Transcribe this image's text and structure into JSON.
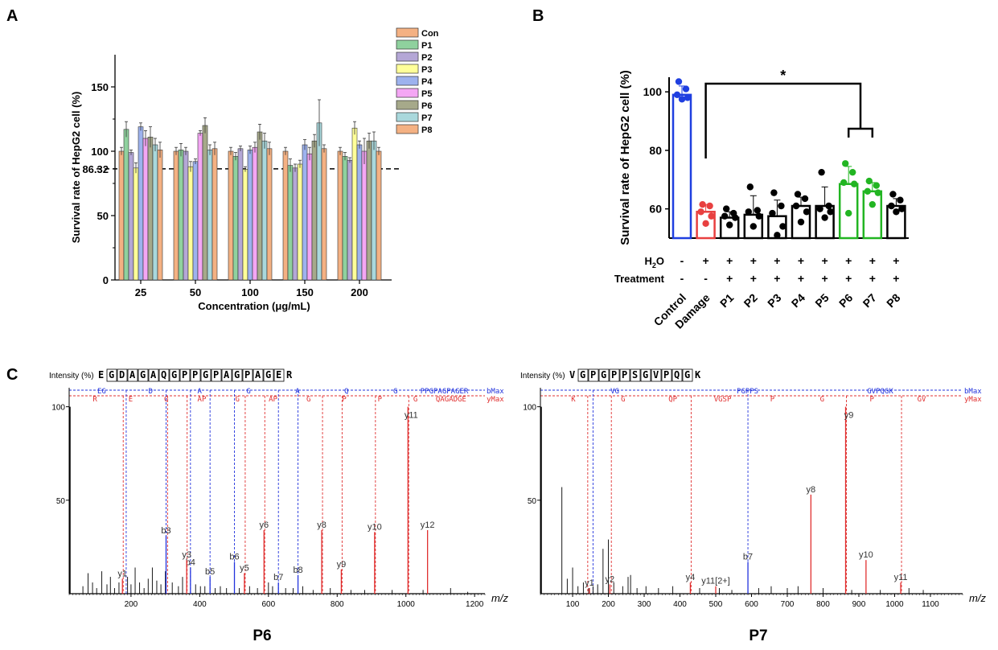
{
  "panels": {
    "a": "A",
    "b": "B",
    "c": "C"
  },
  "chart_data": [
    {
      "type": "bar",
      "id": "panel-a",
      "title": "",
      "xlabel": "Concentration (μg/mL)",
      "ylabel": "Survival rate of HepG2 cell (%)",
      "ylim": [
        0,
        175
      ],
      "yticks": [
        "0",
        "50",
        "100",
        "150"
      ],
      "ytick_values": [
        0,
        50,
        100,
        150
      ],
      "reference_line": {
        "value": 86.32,
        "label": "86.32"
      },
      "categories": [
        "25",
        "50",
        "100",
        "150",
        "200"
      ],
      "legend": [
        "Con",
        "P1",
        "P2",
        "P3",
        "P4",
        "P5",
        "P6",
        "P7",
        "P8"
      ],
      "colors": [
        "#F4B183",
        "#8FD19E",
        "#B4A7D6",
        "#FFFF99",
        "#9DB2EE",
        "#F4A6F4",
        "#A6A98A",
        "#A9D8DC",
        "#F4B183"
      ],
      "series": [
        {
          "name": "Con",
          "values": [
            100,
            100,
            100,
            100,
            100
          ],
          "errors": [
            3,
            3,
            3,
            3,
            3
          ]
        },
        {
          "name": "P1",
          "values": [
            117,
            101,
            96,
            89,
            96
          ],
          "errors": [
            6,
            5,
            3,
            5,
            3
          ]
        },
        {
          "name": "P2",
          "values": [
            99,
            100,
            102,
            87,
            93
          ],
          "errors": [
            2,
            3,
            2,
            3,
            2
          ]
        },
        {
          "name": "P3",
          "values": [
            87,
            88,
            86,
            90,
            118
          ],
          "errors": [
            4,
            4,
            2,
            3,
            5
          ]
        },
        {
          "name": "P4",
          "values": [
            119,
            92,
            101,
            105,
            105
          ],
          "errors": [
            3,
            2,
            3,
            4,
            3
          ]
        },
        {
          "name": "P5",
          "values": [
            110,
            114,
            103,
            98,
            100
          ],
          "errors": [
            6,
            2,
            4,
            5,
            10
          ]
        },
        {
          "name": "P6",
          "values": [
            111,
            120,
            115,
            108,
            108
          ],
          "errors": [
            8,
            6,
            6,
            5,
            6
          ]
        },
        {
          "name": "P7",
          "values": [
            105,
            101,
            108,
            122,
            108
          ],
          "errors": [
            5,
            4,
            6,
            18,
            7
          ]
        },
        {
          "name": "P8",
          "values": [
            101,
            102,
            102,
            102,
            100
          ],
          "errors": [
            6,
            5,
            5,
            3,
            3
          ]
        }
      ]
    },
    {
      "type": "bar",
      "id": "panel-b",
      "ylabel": "Survival rate of HepG2 cell (%)",
      "ylim": [
        50,
        105
      ],
      "yticks": [
        "60",
        "80",
        "100"
      ],
      "ytick_values": [
        60,
        80,
        100
      ],
      "categories": [
        "Control",
        "Damage",
        "P1",
        "P2",
        "P3",
        "P4",
        "P5",
        "P6",
        "P7",
        "P8"
      ],
      "values": [
        99,
        59,
        57,
        58,
        57.5,
        61,
        61,
        68.5,
        66,
        61
      ],
      "errors": [
        3,
        2.5,
        2,
        6.5,
        5.5,
        3,
        6.5,
        6,
        3,
        2.5
      ],
      "colors": [
        "#1F3FE0",
        "#E84040",
        "#000000",
        "#000000",
        "#000000",
        "#000000",
        "#000000",
        "#22B522",
        "#22B522",
        "#000000"
      ],
      "points": [
        [
          103.5,
          101,
          99,
          98,
          97.5
        ],
        [
          61.5,
          61,
          59,
          57.5,
          55
        ],
        [
          60,
          58.5,
          57.5,
          57,
          54.5
        ],
        [
          67.5,
          59.5,
          59,
          57.5,
          54
        ],
        [
          65.5,
          61,
          58.5,
          54,
          51
        ],
        [
          65,
          63.5,
          61,
          59,
          55.5
        ],
        [
          72.5,
          61,
          60,
          59,
          57
        ],
        [
          75.5,
          72.5,
          69,
          68.5,
          58.5
        ],
        [
          69.5,
          68,
          66,
          65.5,
          61.5
        ],
        [
          65,
          63,
          61,
          60,
          59
        ]
      ],
      "row_h2o": {
        "label_main": "H",
        "label_sub": "2",
        "label_end": "O",
        "signs": [
          "-",
          "+",
          "+",
          "+",
          "+",
          "+",
          "+",
          "+",
          "+",
          "+"
        ]
      },
      "row_treatment": {
        "label": "Treatment",
        "signs": [
          "-",
          "-",
          "+",
          "+",
          "+",
          "+",
          "+",
          "+",
          "+",
          "+"
        ]
      },
      "significance": "*"
    },
    {
      "type": "spectrum",
      "id": "panel-c-p6",
      "title": "P6",
      "ylabel": "Intensity (%)",
      "peptide": "EGDAGAQGPPGPAGPAGER",
      "xlabel": "m/z",
      "xlim": [
        20,
        1230
      ],
      "xticks": [
        200,
        400,
        600,
        800,
        1000,
        1200
      ],
      "yticks": [
        50,
        100
      ],
      "ylim": [
        0,
        105
      ],
      "b_ion_row": {
        "fragments": [
          "EG",
          "D",
          "A",
          "G",
          "A",
          "Q",
          "G",
          "PPGPAGPAGER"
        ],
        "end_label": "bMax"
      },
      "y_ion_row": {
        "fragments": [
          "R",
          "E",
          "G",
          "AP",
          "G",
          "AP",
          "G",
          "P",
          "P",
          "G",
          "QAGADGE"
        ],
        "end_label": "yMax"
      },
      "b_ions": [
        {
          "label": "b3",
          "mz": 302,
          "intensity": 31
        },
        {
          "label": "b4",
          "mz": 373,
          "intensity": 14
        },
        {
          "label": "b5",
          "mz": 430,
          "intensity": 9
        },
        {
          "label": "b6",
          "mz": 501,
          "intensity": 17
        },
        {
          "label": "b7",
          "mz": 629,
          "intensity": 6
        },
        {
          "label": "b8",
          "mz": 686,
          "intensity": 10
        }
      ],
      "y_ions": [
        {
          "label": "y1",
          "mz": 175,
          "intensity": 8
        },
        {
          "label": "y3",
          "mz": 362,
          "intensity": 18
        },
        {
          "label": "y5",
          "mz": 530,
          "intensity": 11
        },
        {
          "label": "y6",
          "mz": 587,
          "intensity": 34
        },
        {
          "label": "y8",
          "mz": 755,
          "intensity": 34
        },
        {
          "label": "y9",
          "mz": 812,
          "intensity": 13
        },
        {
          "label": "y10",
          "mz": 909,
          "intensity": 33
        },
        {
          "label": "y11",
          "mz": 1006,
          "intensity": 100
        },
        {
          "label": "y12",
          "mz": 1063,
          "intensity": 34
        }
      ],
      "dashed_blue_mz": [
        186,
        302,
        373,
        430,
        501,
        629,
        686
      ],
      "dashed_red_mz": [
        175,
        304,
        361,
        530,
        587,
        755,
        812,
        909,
        1006
      ],
      "noise": [
        [
          60,
          4
        ],
        [
          75,
          11
        ],
        [
          88,
          6
        ],
        [
          100,
          3
        ],
        [
          115,
          12
        ],
        [
          130,
          5
        ],
        [
          140,
          9
        ],
        [
          152,
          3
        ],
        [
          165,
          6
        ],
        [
          190,
          9
        ],
        [
          200,
          5
        ],
        [
          212,
          14
        ],
        [
          225,
          6
        ],
        [
          238,
          3
        ],
        [
          250,
          8
        ],
        [
          262,
          14
        ],
        [
          275,
          7
        ],
        [
          287,
          5
        ],
        [
          300,
          12
        ],
        [
          320,
          6
        ],
        [
          338,
          4
        ],
        [
          350,
          9
        ],
        [
          388,
          5
        ],
        [
          402,
          4
        ],
        [
          415,
          4
        ],
        [
          445,
          3
        ],
        [
          460,
          4
        ],
        [
          478,
          3
        ],
        [
          515,
          3
        ],
        [
          545,
          4
        ],
        [
          568,
          3
        ],
        [
          600,
          6
        ],
        [
          612,
          4
        ],
        [
          650,
          3
        ],
        [
          672,
          3
        ],
        [
          700,
          4
        ],
        [
          730,
          2
        ],
        [
          780,
          3
        ],
        [
          840,
          2
        ],
        [
          880,
          2
        ],
        [
          960,
          2
        ],
        [
          1050,
          2
        ],
        [
          1130,
          3
        ],
        [
          1180,
          1
        ]
      ]
    },
    {
      "type": "spectrum",
      "id": "panel-c-p7",
      "title": "P7",
      "ylabel": "Intensity (%)",
      "peptide": "VGPGPPSGVPQGK",
      "xlabel": "m/z",
      "xlim": [
        10,
        1190
      ],
      "xticks": [
        100,
        200,
        300,
        400,
        500,
        600,
        700,
        800,
        900,
        1000,
        1100
      ],
      "yticks": [
        50,
        100
      ],
      "ylim": [
        0,
        105
      ],
      "b_ion_row": {
        "fragments": [
          "VG",
          "PGPPS",
          "GVPQGK"
        ],
        "end_label": "bMax"
      },
      "y_ion_row": {
        "fragments": [
          "K",
          "G",
          "QP",
          "VGSP",
          "P",
          "G",
          "P",
          "GV"
        ],
        "end_label": "yMax"
      },
      "b_ions": [
        {
          "label": "b7",
          "mz": 590,
          "intensity": 17
        }
      ],
      "y_ions": [
        {
          "label": "y1",
          "mz": 147,
          "intensity": 3
        },
        {
          "label": "y2",
          "mz": 204,
          "intensity": 5
        },
        {
          "label": "y4",
          "mz": 429,
          "intensity": 6
        },
        {
          "label": "y11[2+]",
          "mz": 500,
          "intensity": 4
        },
        {
          "label": "y8",
          "mz": 766,
          "intensity": 53
        },
        {
          "label": "y9",
          "mz": 863,
          "intensity": 100
        },
        {
          "label": "y10",
          "mz": 920,
          "intensity": 18
        },
        {
          "label": "y11",
          "mz": 1017,
          "intensity": 6
        }
      ],
      "dashed_blue_mz": [
        157,
        590
      ],
      "dashed_red_mz": [
        140,
        206,
        429,
        863,
        1017
      ],
      "noise": [
        [
          70,
          57
        ],
        [
          85,
          8
        ],
        [
          100,
          14
        ],
        [
          115,
          4
        ],
        [
          130,
          6
        ],
        [
          145,
          3
        ],
        [
          157,
          4
        ],
        [
          170,
          5
        ],
        [
          185,
          24
        ],
        [
          200,
          29
        ],
        [
          215,
          6
        ],
        [
          240,
          4
        ],
        [
          255,
          9
        ],
        [
          262,
          10
        ],
        [
          280,
          3
        ],
        [
          305,
          4
        ],
        [
          340,
          3
        ],
        [
          380,
          4
        ],
        [
          455,
          3
        ],
        [
          510,
          3
        ],
        [
          545,
          2
        ],
        [
          590,
          17
        ],
        [
          620,
          3
        ],
        [
          655,
          4
        ],
        [
          700,
          3
        ],
        [
          730,
          4
        ],
        [
          800,
          3
        ],
        [
          880,
          2
        ],
        [
          960,
          2
        ],
        [
          1040,
          3
        ],
        [
          1080,
          2
        ]
      ]
    }
  ]
}
